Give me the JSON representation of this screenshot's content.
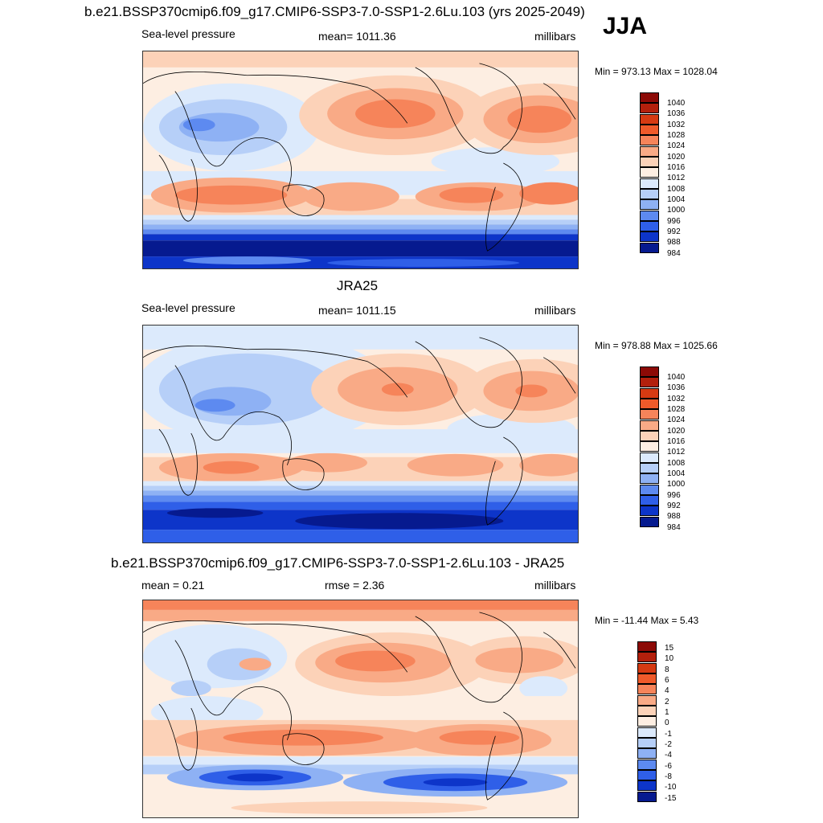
{
  "season": "JJA",
  "panels": [
    {
      "id": "model",
      "title": "b.e21.BSSP370cmip6.f09_g17.CMIP6-SSP3-7.0-SSP1-2.6Lu.103 (yrs 2025-2049)",
      "left": "Sea-level pressure",
      "center": "mean= 1011.36",
      "right": "millibars",
      "minmax": "Min = 973.13 Max = 1028.04",
      "levels": [
        "1040",
        "1036",
        "1032",
        "1028",
        "1024",
        "1020",
        "1016",
        "1012",
        "1008",
        "1004",
        "1000",
        "996",
        "992",
        "988",
        "984"
      ]
    },
    {
      "id": "obs",
      "title": "JRA25",
      "left": "Sea-level pressure",
      "center": "mean= 1011.15",
      "right": "millibars",
      "minmax": "Min = 978.88 Max = 1025.66",
      "levels": [
        "1040",
        "1036",
        "1032",
        "1028",
        "1024",
        "1020",
        "1016",
        "1012",
        "1008",
        "1004",
        "1000",
        "996",
        "992",
        "988",
        "984"
      ]
    },
    {
      "id": "diff",
      "title": "b.e21.BSSP370cmip6.f09_g17.CMIP6-SSP3-7.0-SSP1-2.6Lu.103 - JRA25",
      "left": "mean =   0.21",
      "center": "rmse =   2.36",
      "right": "millibars",
      "minmax": "Min = -11.44 Max =   5.43",
      "levels": [
        "15",
        "10",
        "8",
        "6",
        "4",
        "2",
        "1",
        "0",
        "-1",
        "-2",
        "-4",
        "-6",
        "-8",
        "-10",
        "-15"
      ]
    }
  ],
  "palette": [
    "#8c0a06",
    "#b3200c",
    "#d63a12",
    "#ef5a2a",
    "#f6845a",
    "#f9aa86",
    "#fcd2b8",
    "#fdeee2",
    "#dceafc",
    "#b6cff8",
    "#8eb1f4",
    "#5d8af0",
    "#2f5fe8",
    "#0d35c9",
    "#061a8f"
  ]
}
